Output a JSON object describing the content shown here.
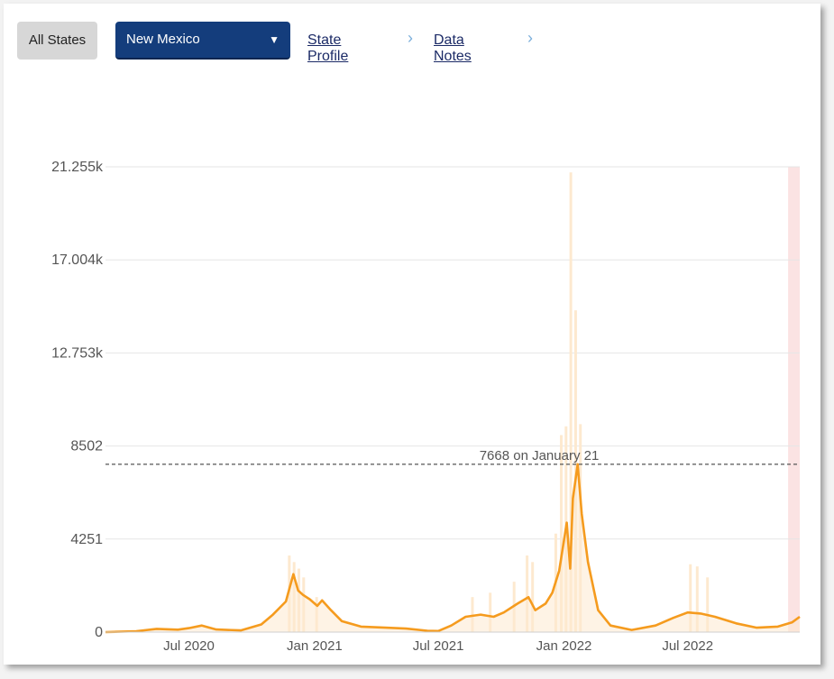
{
  "controls": {
    "all_states_label": "All States",
    "state_selected": "New Mexico",
    "caret": "▼",
    "state_profile_link": "State Profile",
    "data_notes_link": "Data Notes",
    "chevron": "›"
  },
  "colors": {
    "line": "#f59b1e",
    "bars": "#fde9cf",
    "shade": "#fbe3e3",
    "grid": "#e6e6e6",
    "select_bg": "#143d7c"
  },
  "chart_data": {
    "type": "line",
    "y_ticks": [
      {
        "value": 0,
        "label": "0"
      },
      {
        "value": 4251,
        "label": "4251"
      },
      {
        "value": 8502,
        "label": "8502"
      },
      {
        "value": 12753,
        "label": "12.753k"
      },
      {
        "value": 17004,
        "label": "17.004k"
      },
      {
        "value": 21255,
        "label": "21.255k"
      }
    ],
    "ylim": [
      0,
      21255
    ],
    "xlim": [
      "2020-03-01",
      "2022-12-12"
    ],
    "x_ticks": [
      {
        "date": "2020-07-01",
        "label": "Jul 2020"
      },
      {
        "date": "2021-01-01",
        "label": "Jan 2021"
      },
      {
        "date": "2021-07-01",
        "label": "Jul 2021"
      },
      {
        "date": "2022-01-01",
        "label": "Jan 2022"
      },
      {
        "date": "2022-07-01",
        "label": "Jul 2022"
      }
    ],
    "reference_line": {
      "value": 7668,
      "label": "7668 on January 21"
    },
    "shaded_region": [
      "2022-11-25",
      "2022-12-12"
    ],
    "series": [
      {
        "type": "line",
        "points": [
          [
            "2020-03-01",
            0
          ],
          [
            "2020-04-15",
            40
          ],
          [
            "2020-05-15",
            150
          ],
          [
            "2020-06-15",
            110
          ],
          [
            "2020-07-01",
            180
          ],
          [
            "2020-07-20",
            300
          ],
          [
            "2020-08-10",
            120
          ],
          [
            "2020-09-15",
            80
          ],
          [
            "2020-10-15",
            350
          ],
          [
            "2020-11-01",
            800
          ],
          [
            "2020-11-20",
            1400
          ],
          [
            "2020-12-01",
            2650
          ],
          [
            "2020-12-08",
            1900
          ],
          [
            "2020-12-15",
            1700
          ],
          [
            "2020-12-25",
            1500
          ],
          [
            "2021-01-05",
            1200
          ],
          [
            "2021-01-12",
            1450
          ],
          [
            "2021-01-25",
            1000
          ],
          [
            "2021-02-10",
            500
          ],
          [
            "2021-03-10",
            250
          ],
          [
            "2021-04-15",
            200
          ],
          [
            "2021-05-15",
            160
          ],
          [
            "2021-06-15",
            60
          ],
          [
            "2021-07-01",
            50
          ],
          [
            "2021-07-20",
            300
          ],
          [
            "2021-08-10",
            700
          ],
          [
            "2021-09-01",
            800
          ],
          [
            "2021-09-20",
            700
          ],
          [
            "2021-10-05",
            900
          ],
          [
            "2021-10-25",
            1300
          ],
          [
            "2021-11-10",
            1600
          ],
          [
            "2021-11-20",
            1000
          ],
          [
            "2021-12-05",
            1300
          ],
          [
            "2021-12-15",
            1800
          ],
          [
            "2021-12-25",
            2800
          ],
          [
            "2022-01-05",
            5000
          ],
          [
            "2022-01-10",
            2900
          ],
          [
            "2022-01-14",
            6100
          ],
          [
            "2022-01-21",
            7668
          ],
          [
            "2022-01-27",
            5400
          ],
          [
            "2022-02-05",
            3200
          ],
          [
            "2022-02-20",
            1000
          ],
          [
            "2022-03-10",
            300
          ],
          [
            "2022-04-10",
            100
          ],
          [
            "2022-05-15",
            300
          ],
          [
            "2022-06-10",
            650
          ],
          [
            "2022-07-01",
            900
          ],
          [
            "2022-07-20",
            850
          ],
          [
            "2022-08-10",
            700
          ],
          [
            "2022-09-10",
            400
          ],
          [
            "2022-10-10",
            200
          ],
          [
            "2022-11-10",
            250
          ],
          [
            "2022-12-01",
            450
          ],
          [
            "2022-12-12",
            700
          ]
        ]
      },
      {
        "type": "bar",
        "points": [
          [
            "2020-11-25",
            3500
          ],
          [
            "2020-12-02",
            3200
          ],
          [
            "2020-12-09",
            2900
          ],
          [
            "2020-12-16",
            2500
          ],
          [
            "2021-01-04",
            1600
          ],
          [
            "2021-08-20",
            1600
          ],
          [
            "2021-09-15",
            1800
          ],
          [
            "2021-10-20",
            2300
          ],
          [
            "2021-11-08",
            3500
          ],
          [
            "2021-11-16",
            3200
          ],
          [
            "2021-12-20",
            4500
          ],
          [
            "2021-12-28",
            9000
          ],
          [
            "2022-01-04",
            9400
          ],
          [
            "2022-01-11",
            21000
          ],
          [
            "2022-01-18",
            14700
          ],
          [
            "2022-01-25",
            9500
          ],
          [
            "2022-07-05",
            3100
          ],
          [
            "2022-07-15",
            3000
          ],
          [
            "2022-07-30",
            2500
          ]
        ]
      }
    ]
  }
}
